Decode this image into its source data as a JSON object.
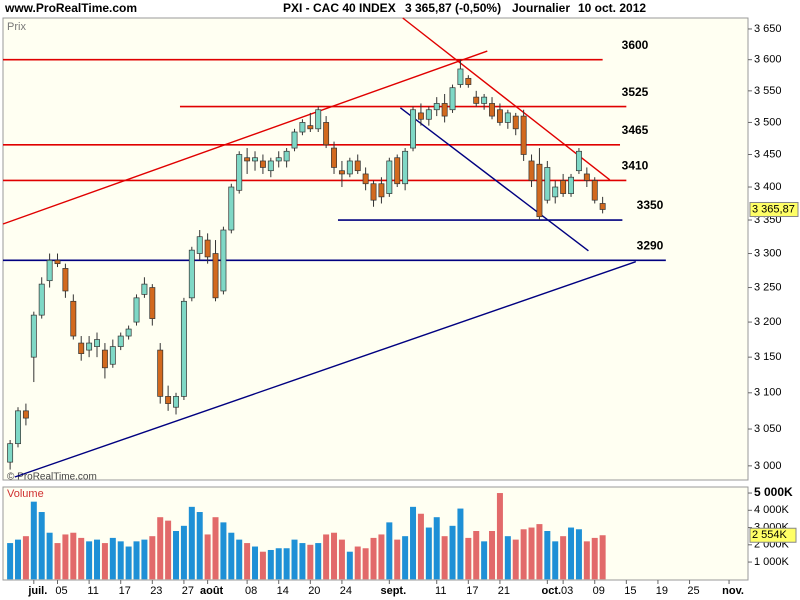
{
  "chart_data": [
    {
      "type": "candlestick",
      "site": "www.ProRealTime.com",
      "title": "PXI - CAC 40 INDEX",
      "quote": "3 365,87 (-0,50%)",
      "period": "Journalier",
      "date": "10 oct. 2012",
      "axis_label": "Prix",
      "watermark": "© ProRealTime.com",
      "last_label": "3 365,87",
      "log": true,
      "up_color": "#7fd8c6",
      "down_color": "#d2691e",
      "open": [
        3005,
        3030,
        3075,
        3150,
        3210,
        3260,
        3290,
        3278,
        3230,
        3170,
        3160,
        3165,
        3160,
        3140,
        3165,
        3180,
        3200,
        3240,
        3250,
        3160,
        3095,
        3080,
        3095,
        3235,
        3300,
        3320,
        3300,
        3245,
        3335,
        3395,
        3445,
        3440,
        3440,
        3425,
        3440,
        3440,
        3460,
        3485,
        3495,
        3490,
        3500,
        3460,
        3425,
        3420,
        3440,
        3420,
        3405,
        3405,
        3390,
        3445,
        3405,
        3460,
        3515,
        3505,
        3520,
        3530,
        3520,
        3560,
        3570,
        3540,
        3530,
        3530,
        3520,
        3500,
        3510,
        3510,
        3440,
        3435,
        3380,
        3385,
        3410,
        3390,
        3425,
        3420,
        3410,
        3375
      ],
      "high": [
        3035,
        3080,
        3085,
        3215,
        3265,
        3300,
        3300,
        3285,
        3240,
        3180,
        3180,
        3185,
        3170,
        3175,
        3185,
        3195,
        3240,
        3265,
        3255,
        3170,
        3110,
        3100,
        3235,
        3310,
        3335,
        3330,
        3320,
        3340,
        3405,
        3455,
        3460,
        3455,
        3450,
        3445,
        3455,
        3460,
        3490,
        3505,
        3515,
        3525,
        3510,
        3470,
        3440,
        3445,
        3450,
        3430,
        3410,
        3415,
        3445,
        3450,
        3460,
        3525,
        3530,
        3525,
        3540,
        3545,
        3560,
        3600,
        3575,
        3550,
        3545,
        3540,
        3530,
        3520,
        3515,
        3520,
        3450,
        3460,
        3440,
        3410,
        3420,
        3420,
        3460,
        3430,
        3415,
        3385
      ],
      "low": [
        2995,
        3025,
        3055,
        3115,
        3205,
        3250,
        3280,
        3235,
        3175,
        3145,
        3150,
        3150,
        3120,
        3135,
        3160,
        3175,
        3195,
        3235,
        3195,
        3085,
        3075,
        3070,
        3090,
        3230,
        3290,
        3285,
        3230,
        3240,
        3330,
        3390,
        3420,
        3425,
        3420,
        3415,
        3430,
        3430,
        3455,
        3480,
        3485,
        3485,
        3460,
        3420,
        3400,
        3415,
        3420,
        3395,
        3370,
        3375,
        3385,
        3400,
        3395,
        3455,
        3495,
        3495,
        3510,
        3500,
        3515,
        3555,
        3555,
        3525,
        3520,
        3505,
        3495,
        3490,
        3480,
        3440,
        3400,
        3350,
        3375,
        3375,
        3385,
        3385,
        3420,
        3400,
        3375,
        3360
      ],
      "close": [
        3030,
        3075,
        3065,
        3210,
        3255,
        3290,
        3285,
        3245,
        3180,
        3155,
        3170,
        3175,
        3135,
        3165,
        3180,
        3190,
        3235,
        3255,
        3205,
        3095,
        3085,
        3095,
        3230,
        3305,
        3325,
        3295,
        3235,
        3335,
        3400,
        3450,
        3440,
        3445,
        3430,
        3440,
        3445,
        3455,
        3485,
        3500,
        3490,
        3520,
        3465,
        3430,
        3420,
        3440,
        3425,
        3405,
        3380,
        3385,
        3440,
        3405,
        3455,
        3520,
        3505,
        3520,
        3530,
        3510,
        3555,
        3585,
        3560,
        3530,
        3540,
        3510,
        3500,
        3515,
        3490,
        3450,
        3410,
        3355,
        3430,
        3400,
        3390,
        3415,
        3455,
        3410,
        3380,
        3365.87
      ],
      "xlim": [
        -0.9,
        93.4
      ],
      "ylim": [
        2981,
        3668
      ],
      "yticks": [
        {
          "value": 3000,
          "label": "3 000"
        },
        {
          "value": 3050,
          "label": "3 050"
        },
        {
          "value": 3100,
          "label": "3 100"
        },
        {
          "value": 3150,
          "label": "3 150"
        },
        {
          "value": 3200,
          "label": "3 200"
        },
        {
          "value": 3250,
          "label": "3 250"
        },
        {
          "value": 3300,
          "label": "3 300"
        },
        {
          "value": 3350,
          "label": "3 350"
        },
        {
          "value": 3400,
          "label": "3 400"
        },
        {
          "value": 3450,
          "label": "3 450"
        },
        {
          "value": 3500,
          "label": "3 500"
        },
        {
          "value": 3550,
          "label": "3 550"
        },
        {
          "value": 3600,
          "label": "3 600"
        },
        {
          "value": 3650,
          "label": "3 650"
        }
      ],
      "xticks": [
        {
          "value": 3,
          "label": "juil."
        },
        {
          "value": 6,
          "label": "05"
        },
        {
          "value": 10,
          "label": "11"
        },
        {
          "value": 14,
          "label": "17"
        },
        {
          "value": 18,
          "label": "23"
        },
        {
          "value": 22,
          "label": "27"
        },
        {
          "value": 25,
          "label": "août"
        },
        {
          "value": 30,
          "label": "08"
        },
        {
          "value": 34,
          "label": "14"
        },
        {
          "value": 38,
          "label": "20"
        },
        {
          "value": 42,
          "label": "24"
        },
        {
          "value": 48,
          "label": "sept."
        },
        {
          "value": 54,
          "label": "11"
        },
        {
          "value": 58,
          "label": "17"
        },
        {
          "value": 62,
          "label": "21"
        },
        {
          "value": 68,
          "label": "oct."
        },
        {
          "value": 70,
          "label": "03"
        },
        {
          "value": 74,
          "label": "09"
        },
        {
          "value": 78,
          "label": "15"
        },
        {
          "value": 82,
          "label": "19"
        },
        {
          "value": 86,
          "label": "25"
        },
        {
          "value": 91,
          "label": "nov."
        }
      ],
      "levels": [
        {
          "value": 3600,
          "color": "#e00000",
          "x": [
            -0.9,
            75
          ]
        },
        {
          "value": 3525,
          "color": "#e00000",
          "x": [
            21.5,
            78
          ]
        },
        {
          "value": 3465,
          "color": "#e00000",
          "x": [
            -0.9,
            77.2
          ]
        },
        {
          "value": 3410,
          "color": "#e00000",
          "x": [
            -0.9,
            78
          ]
        },
        {
          "value": 3350,
          "color": "#000080",
          "x": [
            41.5,
            77.5
          ]
        },
        {
          "value": 3290,
          "color": "#000080",
          "x": [
            -0.9,
            83
          ]
        }
      ],
      "trendlines": [
        {
          "color": "#e00000",
          "x": [
            -0.9,
            60.4
          ],
          "values": [
            3344,
            3614
          ]
        },
        {
          "color": "#e00000",
          "x": [
            49.7,
            75.9
          ],
          "values": [
            3668,
            3411
          ]
        },
        {
          "color": "#000080",
          "x": [
            49.4,
            73.2
          ],
          "values": [
            3523,
            3304
          ]
        },
        {
          "color": "#000080",
          "x": [
            0.6,
            79.2
          ],
          "values": [
            2985,
            3288
          ]
        }
      ]
    },
    {
      "type": "bar",
      "axis_label": "Volume",
      "up_color": "#1e90d6",
      "down_color": "#e26a6a",
      "values": [
        2100,
        2300,
        2500,
        4500,
        3900,
        2700,
        2100,
        2600,
        2700,
        2400,
        2200,
        2300,
        2100,
        2400,
        2200,
        1900,
        2200,
        2300,
        2500,
        3600,
        3400,
        2800,
        3100,
        4200,
        3900,
        2600,
        3600,
        3300,
        2700,
        2300,
        2100,
        1900,
        1600,
        1700,
        1800,
        1800,
        2300,
        2100,
        2000,
        2100,
        2600,
        2700,
        2300,
        1600,
        1900,
        1800,
        2400,
        2600,
        3300,
        2300,
        2500,
        4200,
        3800,
        3000,
        3600,
        2500,
        3100,
        4100,
        2400,
        2800,
        2200,
        2800,
        5000,
        2500,
        2300,
        2900,
        3000,
        3200,
        2800,
        2200,
        2500,
        3000,
        2900,
        2200,
        2400,
        2554
      ],
      "last_label": "2 554K",
      "ylim": [
        -40,
        5350
      ],
      "yticks": [
        {
          "value": 1000,
          "label": "1 000K"
        },
        {
          "value": 2000,
          "label": "2 000K"
        },
        {
          "value": 3000,
          "label": "3 000K"
        },
        {
          "value": 4000,
          "label": "4 000K"
        },
        {
          "value": 5000,
          "label": "5 000K"
        }
      ]
    }
  ]
}
